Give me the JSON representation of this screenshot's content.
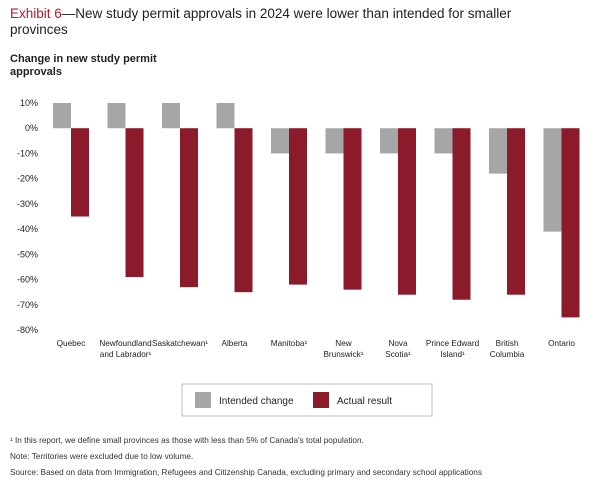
{
  "header": {
    "exhibit": "Exhibit 6",
    "title": "—New study permit approvals in 2024 were lower than intended for smaller provinces"
  },
  "chart_data": {
    "type": "bar",
    "ylabel": "Change in new study permit approvals",
    "ylim": [
      -80,
      10
    ],
    "yticks": [
      "10%",
      "0%",
      "-10%",
      "-20%",
      "-30%",
      "-40%",
      "-50%",
      "-60%",
      "-70%",
      "-80%"
    ],
    "categories": [
      [
        "Quebec"
      ],
      [
        "Newfoundland",
        "and Labrador¹"
      ],
      [
        "Saskatchewan¹"
      ],
      [
        "Alberta"
      ],
      [
        "Manitoba¹"
      ],
      [
        "New",
        "Brunswick¹"
      ],
      [
        "Nova",
        "Scotia¹"
      ],
      [
        "Prince Edward",
        "Island¹"
      ],
      [
        "British",
        "Columbia"
      ],
      [
        "Ontario"
      ]
    ],
    "series": [
      {
        "name": "Intended change",
        "color": "#a6a6a6",
        "values": [
          10,
          10,
          10,
          10,
          -10,
          -10,
          -10,
          -10,
          -18,
          -41
        ]
      },
      {
        "name": "Actual result",
        "color": "#8b1a2b",
        "values": [
          -35,
          -59,
          -63,
          -65,
          -62,
          -64,
          -66,
          -68,
          -66,
          -75
        ]
      }
    ],
    "grid": false,
    "legend": "bottom-center"
  },
  "footnotes": [
    "¹ In this report, we define small provinces as those with less than 5% of Canada's total population.",
    "Note: Territories were excluded due to low volume.",
    "Source: Based on data from Immigration, Refugees and Citizenship Canada, excluding primary and secondary school applications"
  ]
}
